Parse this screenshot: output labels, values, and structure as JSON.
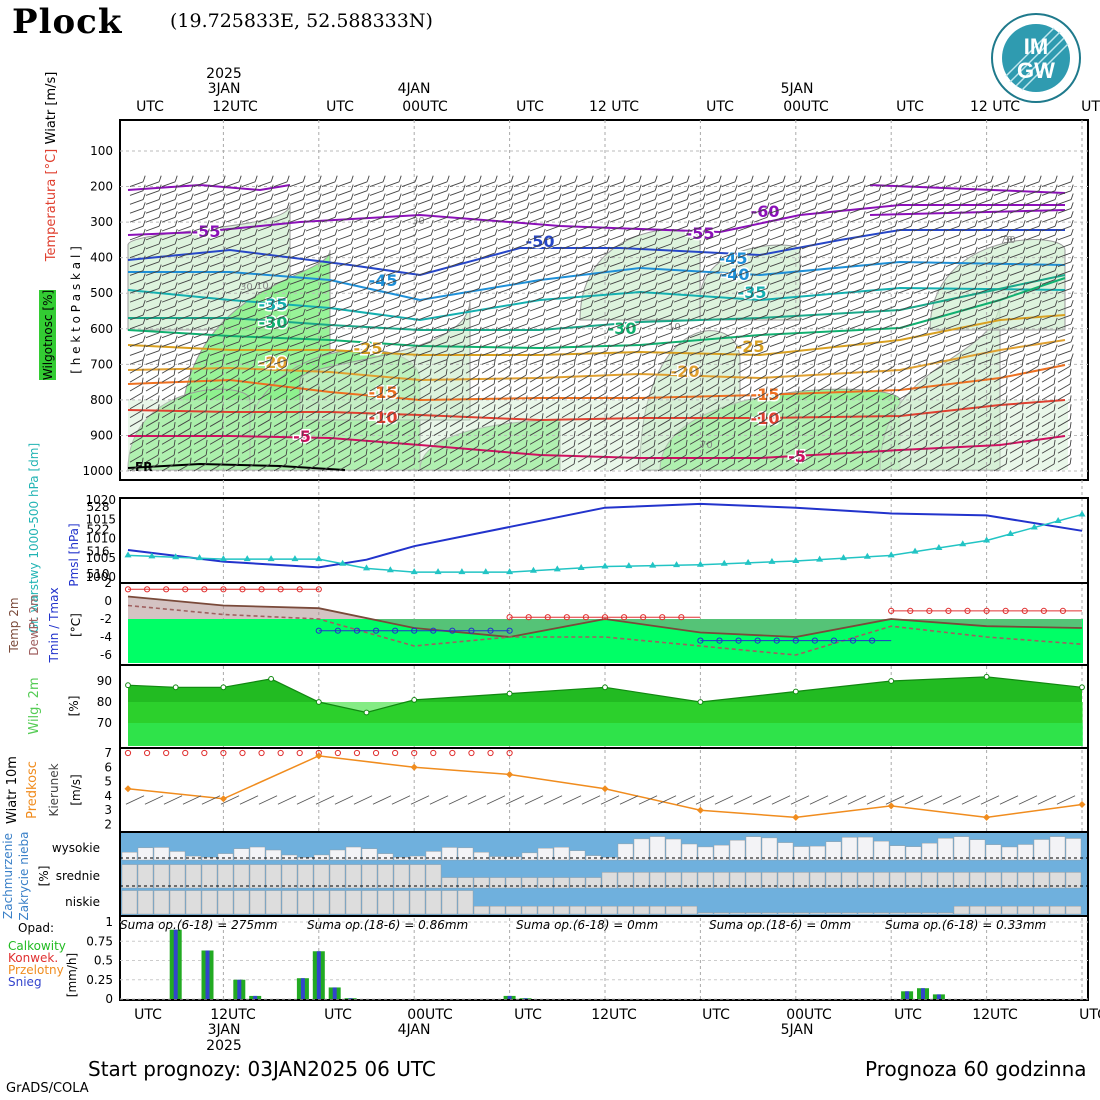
{
  "header": {
    "station": "Plock",
    "coords": "(19.725833E, 52.588333N)",
    "logo_text_top": "IM",
    "logo_text_bottom": "GW"
  },
  "footer": {
    "start": "Start prognozy: 03JAN2025 06 UTC",
    "length": "Prognoza 60 godzinna",
    "credit": "GrADS/COLA"
  },
  "colors": {
    "moist": "#8df28d",
    "moist_light": "#cfeecf",
    "temp_band": "#00ff66",
    "pressure_line": "#2233cc",
    "gph_line": "#22c4c4",
    "tmax_line": "#e03030",
    "tmin_line": "#2233cc",
    "wind_speed": "#f08c1e",
    "cloud_blue": "#6fb0dd",
    "cloud_grey": "#dddddd",
    "precip_green": "#22aa22",
    "precip_blue": "#3344cc"
  },
  "time_axis": {
    "top_labels": [
      "UTC",
      "12UTC",
      "UTC",
      "00UTC",
      "UTC",
      "12 UTC",
      "UTC",
      "00UTC",
      "UTC",
      "12 UTC",
      "UTC"
    ],
    "top_dates": [
      "2025",
      "3JAN",
      "4JAN",
      "5JAN"
    ],
    "bottom_labels": [
      "UTC",
      "12UTC",
      "UTC",
      "00UTC",
      "UTC",
      "12UTC",
      "UTC",
      "00UTC",
      "UTC",
      "12UTC",
      "UTC"
    ],
    "bottom_dates": [
      "3JAN",
      "2025",
      "4JAN",
      "5JAN"
    ]
  },
  "panels": {
    "upper_air": {
      "ylabel_wind": "Wiatr [m/s]",
      "ylabel_temp": "Temperatura  [°C]",
      "ylabel_moist": "Wilgotnosc [%]",
      "ylabel_p": "[ h e k t o P a s k a l ]",
      "levels": [
        "100",
        "200",
        "300",
        "400",
        "500",
        "600",
        "700",
        "800",
        "900",
        "1000"
      ],
      "fr_label": "FR",
      "isotherm_labels": [
        "-55",
        "-60",
        "-50",
        "-55",
        "-45",
        "-45",
        "-40",
        "-35",
        "-35",
        "-30",
        "-30",
        "-25",
        "-25",
        "-20",
        "-20",
        "-15",
        "-15",
        "-10",
        "-10",
        "-5",
        "-5"
      ],
      "rh_labels": [
        "30",
        "30",
        "10",
        "10",
        "70",
        "70",
        "30"
      ]
    },
    "pressure": {
      "ylabel_gph": "Gr. warstwy 1000-500 hPa [dm]",
      "ylabel_pmsl": "Pmsl [hPa]",
      "left_ticks": [
        "528",
        "522",
        "516",
        "510"
      ],
      "right_ticks": [
        "1020",
        "1015",
        "1010",
        "1005",
        "1000"
      ]
    },
    "temperature": {
      "ylabel_1": "Temp 2m",
      "ylabel_2": "DewPt 2m",
      "ylabel_3": "Tmin / Tmax",
      "unit": "[°C]",
      "ticks": [
        "2",
        "0",
        "-2",
        "-4",
        "-6"
      ]
    },
    "humidity": {
      "ylabel": "Wilg. 2m",
      "unit": "[%]",
      "ticks": [
        "90",
        "80",
        "70"
      ]
    },
    "wind": {
      "ylabel_1": "Wiatr 10m",
      "ylabel_2": "Predkosc",
      "ylabel_3": "Kierunek",
      "unit": "[m/s]",
      "ticks": [
        "7",
        "6",
        "5",
        "4",
        "3",
        "2"
      ]
    },
    "cloud": {
      "ylabel_1": "Zachmurzenie",
      "ylabel_2": "Zakrycie nieba",
      "unit": "[%]",
      "levels": [
        "wysokie",
        "srednie",
        "niskie"
      ]
    },
    "precip": {
      "title": "Opad:",
      "legend": [
        {
          "name": "Calkowity",
          "color": "#22bb22"
        },
        {
          "name": "Konwek.",
          "color": "#e03030"
        },
        {
          "name": "Przelotny",
          "color": "#f08c1e"
        },
        {
          "name": "Snieg",
          "color": "#3344cc"
        }
      ],
      "unit": "[mm/h]",
      "ticks": [
        "1",
        "0.75",
        "0.5",
        "0.25",
        "0"
      ],
      "sums": [
        "Suma op.(6-18) = 275mm",
        "Suma op.(18-6) = 0.86mm",
        "Suma op.(6-18) = 0mm",
        "Suma op.(18-6) = 0mm",
        "Suma op.(6-18) = 0.33mm"
      ]
    }
  },
  "chart_data": [
    {
      "type": "line",
      "title": "",
      "series": [
        {
          "name": "Pmsl [hPa]",
          "x_hours": [
            0,
            6,
            12,
            15,
            18,
            24,
            30,
            36,
            42,
            48,
            54,
            60
          ],
          "values": [
            1007,
            1004,
            1002.5,
            1004.5,
            1008,
            1013,
            1018,
            1019,
            1018,
            1016.5,
            1016,
            1012
          ]
        },
        {
          "name": "Gr. warstwy 1000-500 hPa [dm]",
          "x_hours": [
            0,
            6,
            12,
            15,
            18,
            24,
            30,
            36,
            42,
            48,
            54,
            60
          ],
          "values": [
            515,
            514,
            514,
            511.5,
            510.5,
            510.5,
            512,
            512.5,
            513.5,
            515,
            519,
            526
          ]
        }
      ]
    },
    {
      "type": "line",
      "series": [
        {
          "name": "Temp 2m",
          "x_hours": [
            0,
            6,
            12,
            18,
            24,
            30,
            36,
            42,
            48,
            54,
            60
          ],
          "values": [
            0.5,
            -0.5,
            -0.8,
            -3,
            -4,
            -2,
            -3.5,
            -4,
            -2,
            -2.8,
            -3
          ]
        },
        {
          "name": "DewPt 2m",
          "x_hours": [
            0,
            6,
            12,
            18,
            24,
            30,
            36,
            42,
            48,
            54,
            60
          ],
          "values": [
            -0.5,
            -1.5,
            -2,
            -5,
            -4,
            -4,
            -5,
            -6,
            -2.8,
            -4,
            -4.8
          ]
        },
        {
          "name": "Tmax",
          "values": [
            1.3,
            -1.8,
            -1.1
          ]
        },
        {
          "name": "Tmin",
          "values": [
            -3.3,
            -4.4
          ]
        }
      ]
    },
    {
      "type": "area",
      "series": [
        {
          "name": "Wilg. 2m",
          "x_hours": [
            0,
            3,
            6,
            9,
            12,
            15,
            18,
            24,
            30,
            36,
            42,
            48,
            54,
            60
          ],
          "values": [
            88,
            87,
            87,
            91,
            80,
            75,
            81,
            84,
            87,
            80,
            85,
            90,
            92,
            87
          ]
        }
      ]
    },
    {
      "type": "line",
      "series": [
        {
          "name": "Predkosc",
          "x_hours": [
            0,
            6,
            12,
            18,
            24,
            30,
            36,
            42,
            48,
            54,
            60
          ],
          "values": [
            4.5,
            3.8,
            6.8,
            6,
            5.5,
            4.5,
            3,
            2.5,
            3.3,
            2.5,
            3.4
          ]
        }
      ]
    },
    {
      "type": "bar",
      "series": [
        {
          "name": "Calkowity",
          "x_hours": [
            3,
            5,
            7,
            8,
            11,
            12,
            13,
            14,
            24,
            25,
            49,
            50,
            51
          ],
          "values": [
            0.9,
            0.63,
            0.25,
            0.04,
            0.27,
            0.62,
            0.15,
            0.01,
            0.04,
            0.01,
            0.1,
            0.14,
            0.06
          ]
        }
      ]
    }
  ]
}
